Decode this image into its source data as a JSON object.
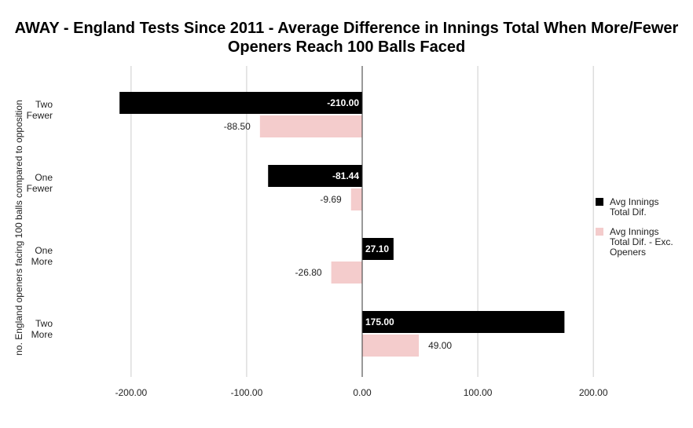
{
  "chart_data": {
    "type": "bar",
    "orientation": "horizontal",
    "title_lines": [
      "AWAY - England Tests Since 2011 - Average Difference in Innings Total When More/Fewer",
      "Openers Reach 100 Balls Faced"
    ],
    "ylabel": "no. England openers facing 100 balls compared to opposition",
    "xlabel": "",
    "categories": [
      [
        "Two",
        "Fewer"
      ],
      [
        "One",
        "Fewer"
      ],
      [
        "One",
        "More"
      ],
      [
        "Two",
        "More"
      ]
    ],
    "series": [
      {
        "name_lines": [
          "Avg Innings",
          "Total Dif."
        ],
        "color": "#000000",
        "values": [
          -210.0,
          -81.44,
          27.1,
          175.0
        ]
      },
      {
        "name_lines": [
          "Avg Innings",
          "Total Dif. - Exc.",
          "Openers"
        ],
        "color": "#f4cccc",
        "values": [
          -88.5,
          -9.69,
          -26.8,
          49.0
        ]
      }
    ],
    "xlim": [
      -240,
      240
    ],
    "xticks": [
      -200,
      -100,
      0,
      100,
      200
    ],
    "xtick_labels": [
      "-200.00",
      "-100.00",
      "0.00",
      "100.00",
      "200.00"
    ],
    "grid": true,
    "legend_position": "right"
  }
}
